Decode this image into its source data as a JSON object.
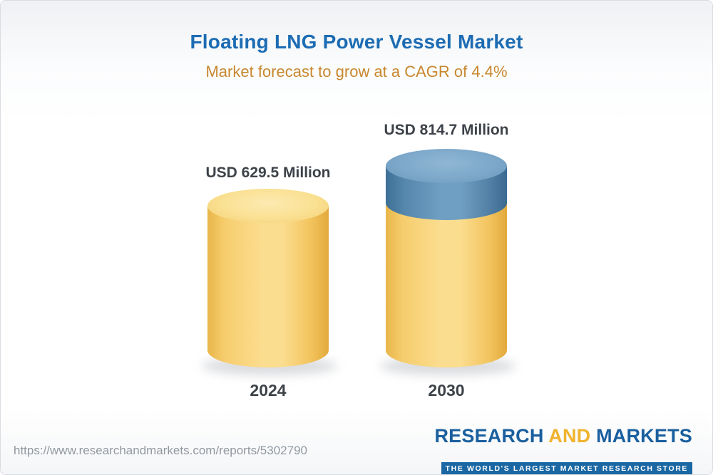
{
  "header": {
    "title": "Floating LNG Power Vessel Market",
    "subtitle": "Market forecast to grow at a CAGR of 4.4%"
  },
  "chart_data": {
    "type": "bar",
    "title": "Floating LNG Power Vessel Market",
    "subtitle": "Market forecast to grow at a CAGR of 4.4%",
    "cagr_percent": 4.4,
    "unit": "USD Million",
    "categories": [
      "2024",
      "2030"
    ],
    "values": [
      629.5,
      814.7
    ],
    "value_labels": [
      "USD 629.5 Million",
      "USD 814.7 Million"
    ],
    "xlabel": "",
    "ylabel": "",
    "ylim": [
      0,
      900
    ],
    "grid": false,
    "legend": "none",
    "bar_style": "3d-cylinder",
    "colors": {
      "base_segment": "#f6cd6d",
      "growth_segment": "#5e93bb",
      "title_text": "#1c6cb3",
      "subtitle_text": "#c8872e",
      "label_text": "#3d4249"
    },
    "notes": "2030 cylinder shows growth portion above 2024 level in blue"
  },
  "footer": {
    "url": "https://www.researchandmarkets.com/reports/5302790",
    "logo": {
      "research": "RESEARCH",
      "and": "AND",
      "markets": "MARKETS",
      "tagline": "THE WORLD'S LARGEST MARKET RESEARCH STORE"
    }
  }
}
